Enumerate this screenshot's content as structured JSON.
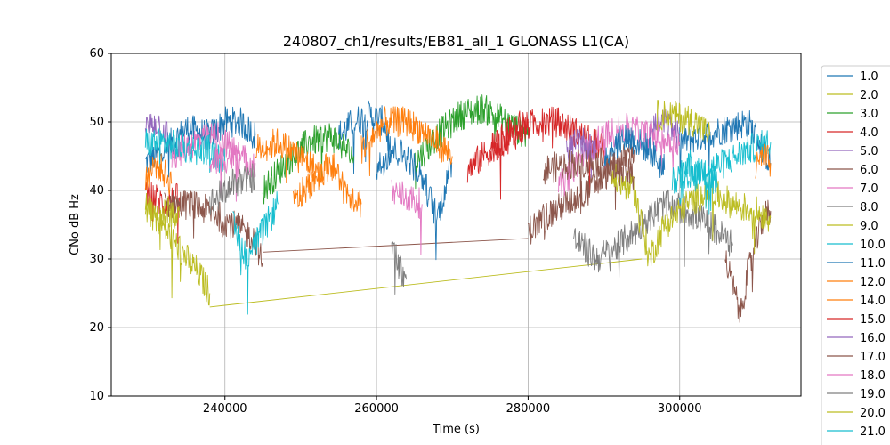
{
  "chart_data": {
    "type": "line",
    "title": "240807_ch1/results/EB81_all_1 GLONASS L1(CA)",
    "xlabel": "Time (s)",
    "ylabel": "CNo dB Hz",
    "xlim": [
      225000,
      316000
    ],
    "ylim": [
      10,
      60
    ],
    "xticks": [
      240000,
      260000,
      280000,
      300000
    ],
    "xtick_labels": [
      "240000",
      "260000",
      "280000",
      "300000"
    ],
    "yticks": [
      10,
      20,
      30,
      40,
      50,
      60
    ],
    "ytick_labels": [
      "10",
      "20",
      "30",
      "40",
      "50",
      "60"
    ],
    "grid": true,
    "legend_position": "right, outside plot",
    "series": [
      {
        "name": "1.0",
        "color": "#1f77b4",
        "segments": [
          {
            "x": [
              229500,
              232000,
              235000,
              238000,
              240000,
              242000,
              244000
            ],
            "y": [
              44,
              46,
              49,
              48,
              50,
              50,
              48
            ]
          },
          {
            "x": [
              255000,
              257000,
              259000,
              261000,
              262000
            ],
            "y": [
              48,
              50,
              51,
              50,
              45
            ]
          },
          {
            "x": [
              300000,
              303000,
              306000,
              309000,
              312000
            ],
            "y": [
              47,
              48,
              49,
              50,
              44
            ]
          }
        ]
      },
      {
        "name": "2.0",
        "color": "#bcbd22",
        "segments": [
          {
            "x": [
              229500,
              231000,
              233000,
              235000,
              236500,
              238000
            ],
            "y": [
              37,
              36,
              33,
              30,
              28,
              25
            ]
          },
          {
            "x": [
              238000,
              295000
            ],
            "y": [
              23,
              30
            ]
          }
        ]
      },
      {
        "name": "3.0",
        "color": "#2ca02c",
        "segments": [
          {
            "x": [
              245000,
              248000,
              251000,
              254000,
              257000
            ],
            "y": [
              40,
              44,
              47,
              48,
              45
            ]
          },
          {
            "x": [
              265000,
              268000,
              271000,
              274000,
              277000,
              280000
            ],
            "y": [
              44,
              48,
              51,
              52,
              50,
              48
            ]
          }
        ]
      },
      {
        "name": "4.0",
        "color": "#d62728",
        "segments": [
          {
            "x": [
              275000,
              278000,
              281000,
              284000,
              287000,
              290000
            ],
            "y": [
              46,
              48,
              50,
              50,
              48,
              46
            ]
          },
          {
            "x": [
              229500,
              232000,
              234000
            ],
            "y": [
              40,
              38,
              39
            ]
          }
        ]
      },
      {
        "name": "5.0",
        "color": "#9467bd",
        "segments": [
          {
            "x": [
              229500,
              231000,
              232500
            ],
            "y": [
              49,
              50,
              48
            ]
          },
          {
            "x": [
              296000,
              298000,
              300000
            ],
            "y": [
              49,
              50,
              48
            ]
          }
        ]
      },
      {
        "name": "6.0",
        "color": "#8c564b",
        "segments": [
          {
            "x": [
              232000,
              235000,
              238000,
              241000,
              244000,
              245000
            ],
            "y": [
              38,
              38,
              37,
              35,
              33,
              29
            ]
          },
          {
            "x": [
              245000,
              280000
            ],
            "y": [
              31,
              33
            ]
          },
          {
            "x": [
              280000,
              282000,
              285000,
              288000,
              291000,
              294000
            ],
            "y": [
              34,
              36,
              38,
              40,
              43,
              46
            ]
          },
          {
            "x": [
              306000,
              308000,
              309000,
              311000,
              312000
            ],
            "y": [
              30,
              22,
              28,
              36,
              37
            ]
          }
        ]
      },
      {
        "name": "7.0",
        "color": "#e377c2",
        "segments": [
          {
            "x": [
              233000,
              236000,
              239000,
              242000
            ],
            "y": [
              45,
              47,
              48,
              45
            ]
          },
          {
            "x": [
              262000,
              264000,
              266000
            ],
            "y": [
              40,
              39,
              38
            ]
          },
          {
            "x": [
              284000,
              287000,
              290000,
              293000,
              296000,
              300000
            ],
            "y": [
              40,
              45,
              48,
              49,
              48,
              47
            ]
          }
        ]
      },
      {
        "name": "8.0",
        "color": "#7f7f7f",
        "segments": [
          {
            "x": [
              262000,
              263000,
              264000
            ],
            "y": [
              32,
              29,
              27
            ]
          },
          {
            "x": [
              286000,
              289000,
              292000,
              295000,
              298000,
              301000,
              304000,
              307000
            ],
            "y": [
              33,
              30,
              32,
              35,
              38,
              37,
              35,
              32
            ]
          }
        ]
      },
      {
        "name": "9.0",
        "color": "#bcbd22",
        "segments": [
          {
            "x": [
              291000,
              294000,
              296000,
              298000,
              301000,
              304000,
              307000,
              310000,
              312000
            ],
            "y": [
              42,
              40,
              30,
              35,
              38,
              40,
              38,
              37,
              36
            ]
          },
          {
            "x": [
              297000,
              299000,
              302000,
              304000
            ],
            "y": [
              51,
              51,
              50,
              48
            ]
          }
        ]
      },
      {
        "name": "10.0",
        "color": "#17becf",
        "segments": [
          {
            "x": [
              229500,
              232000,
              235000,
              238000,
              240000
            ],
            "y": [
              47,
              47,
              46,
              46,
              44
            ]
          },
          {
            "x": [
              241000,
              243000,
              245000,
              247000
            ],
            "y": [
              35,
              30,
              34,
              38
            ]
          },
          {
            "x": [
              300000,
              303000,
              306000,
              309000,
              312000
            ],
            "y": [
              40,
              43,
              44,
              46,
              47
            ]
          }
        ]
      },
      {
        "name": "11.0",
        "color": "#1f77b4",
        "segments": [
          {
            "x": [
              260000,
              262000,
              264000,
              266000,
              268000,
              270000
            ],
            "y": [
              43,
              46,
              45,
              42,
              36,
              44
            ]
          },
          {
            "x": [
              290000,
              293000,
              296000,
              298000
            ],
            "y": [
              45,
              48,
              46,
              43
            ]
          }
        ]
      },
      {
        "name": "12.0",
        "color": "#ff7f0e",
        "segments": [
          {
            "x": [
              229500,
              231000,
              233000
            ],
            "y": [
              42,
              44,
              41
            ]
          },
          {
            "x": [
              244000,
              247000,
              250000,
              253000
            ],
            "y": [
              46,
              47,
              45,
              42
            ]
          },
          {
            "x": [
              258000,
              261000,
              264000,
              267000,
              270000
            ],
            "y": [
              46,
              50,
              50,
              48,
              45
            ]
          },
          {
            "x": [
              310000,
              311000,
              312000
            ],
            "y": [
              43,
              45,
              44
            ]
          }
        ]
      },
      {
        "name": "14.0",
        "color": "#ff7f0e",
        "segments": [
          {
            "x": [
              249000,
              252000,
              254000,
              256000,
              258000
            ],
            "y": [
              38,
              42,
              44,
              40,
              38
            ]
          }
        ]
      },
      {
        "name": "15.0",
        "color": "#d62728",
        "segments": [
          {
            "x": [
              272000,
              274000,
              276000,
              278000,
              280000
            ],
            "y": [
              43,
              45,
              47,
              49,
              50
            ]
          }
        ]
      },
      {
        "name": "16.0",
        "color": "#9467bd",
        "segments": [
          {
            "x": [
              285000,
              287000,
              289000
            ],
            "y": [
              46,
              47,
              46
            ]
          }
        ]
      },
      {
        "name": "17.0",
        "color": "#8c564b",
        "segments": [
          {
            "x": [
              282000,
              286000,
              290000,
              294000
            ],
            "y": [
              43,
              44,
              44,
              42
            ]
          }
        ]
      },
      {
        "name": "18.0",
        "color": "#e377c2",
        "segments": [
          {
            "x": [
              238000,
              241000,
              244000
            ],
            "y": [
              44,
              45,
              44
            ]
          }
        ]
      },
      {
        "name": "19.0",
        "color": "#7f7f7f",
        "segments": [
          {
            "x": [
              238000,
              241000,
              244000
            ],
            "y": [
              38,
              41,
              42
            ]
          }
        ]
      },
      {
        "name": "20.0",
        "color": "#bcbd22",
        "segments": [
          {
            "x": [
              229500,
              231000,
              232500,
              234000
            ],
            "y": [
              38,
              36,
              37,
              36
            ]
          }
        ]
      },
      {
        "name": "21.0",
        "color": "#17becf",
        "segments": [
          {
            "x": [
              299000,
              301000,
              303000,
              305000
            ],
            "y": [
              41,
              44,
              43,
              41
            ]
          }
        ]
      }
    ]
  }
}
